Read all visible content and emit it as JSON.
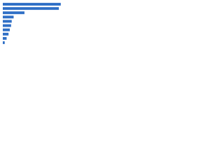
{
  "chart_data": {
    "type": "bar",
    "orientation": "horizontal",
    "categories": [
      null,
      null,
      null,
      null,
      null,
      null,
      null,
      null,
      null,
      null
    ],
    "values": [
      91,
      88,
      34,
      17,
      14,
      13,
      11,
      9,
      6,
      3
    ],
    "color": "#2f6fc6",
    "xlim": [
      0,
      100
    ]
  }
}
